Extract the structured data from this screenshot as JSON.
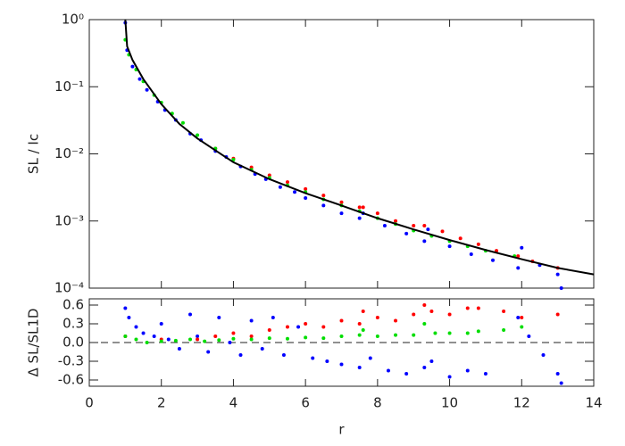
{
  "chart_data": [
    {
      "type": "scatter",
      "ylabel": "SL / Ic",
      "log_y": true,
      "xlim": [
        0,
        14
      ],
      "xticks": [
        0,
        2,
        4,
        6,
        8,
        10,
        12,
        14
      ],
      "ylim": [
        0.0001,
        1
      ],
      "yticks": [
        {
          "value": 1,
          "label": "10⁰"
        },
        {
          "value": 0.1,
          "label": "10⁻¹"
        },
        {
          "value": 0.01,
          "label": "10⁻²"
        },
        {
          "value": 0.001,
          "label": "10⁻³"
        },
        {
          "value": 0.0001,
          "label": "10⁻⁴"
        }
      ],
      "series": [
        {
          "type": "scatter",
          "color": "#0000ff",
          "x": [
            1.0,
            1.05,
            1.2,
            1.4,
            1.6,
            1.9,
            2.1,
            2.4,
            2.8,
            3.1,
            3.5,
            3.8,
            4.2,
            4.6,
            4.9,
            5.3,
            5.7,
            6.0,
            6.5,
            7.0,
            7.5,
            7.6,
            8.2,
            8.8,
            9.3,
            9.4,
            10.0,
            10.6,
            11.2,
            11.9,
            12.0,
            12.5,
            13.0,
            13.1
          ],
          "values": [
            0.9,
            0.35,
            0.2,
            0.13,
            0.09,
            0.06,
            0.045,
            0.032,
            0.02,
            0.016,
            0.011,
            0.009,
            0.0065,
            0.005,
            0.0042,
            0.0032,
            0.0027,
            0.0022,
            0.0017,
            0.0013,
            0.0011,
            0.0013,
            0.00085,
            0.00065,
            0.0005,
            0.00075,
            0.00042,
            0.00032,
            0.00026,
            0.0002,
            0.0004,
            0.00022,
            0.00016,
            0.0001
          ]
        },
        {
          "type": "scatter",
          "color": "#ff0000",
          "x": [
            3.5,
            4.0,
            4.5,
            5.0,
            5.5,
            6.0,
            6.5,
            7.0,
            7.5,
            7.6,
            8.0,
            8.5,
            9.0,
            9.3,
            9.8,
            10.3,
            10.8,
            11.3,
            11.9,
            12.3,
            13.0
          ],
          "values": [
            0.012,
            0.0085,
            0.0063,
            0.0048,
            0.0038,
            0.003,
            0.0024,
            0.0019,
            0.0016,
            0.0016,
            0.0013,
            0.001,
            0.00085,
            0.00085,
            0.0007,
            0.00055,
            0.00045,
            0.00036,
            0.0003,
            0.00025,
            0.0002
          ]
        },
        {
          "type": "scatter",
          "color": "#00dd00",
          "x": [
            1.0,
            1.1,
            1.3,
            1.5,
            1.8,
            2.0,
            2.3,
            2.6,
            3.0,
            3.5,
            4.0,
            4.5,
            5.0,
            5.5,
            6.0,
            6.5,
            7.0,
            7.5,
            8.0,
            8.5,
            9.0,
            9.5,
            10.0,
            10.5,
            11.0,
            11.8
          ],
          "values": [
            0.5,
            0.3,
            0.18,
            0.12,
            0.075,
            0.058,
            0.04,
            0.029,
            0.019,
            0.012,
            0.0082,
            0.0058,
            0.0044,
            0.0034,
            0.0027,
            0.0021,
            0.0017,
            0.0014,
            0.0011,
            0.0009,
            0.00072,
            0.0006,
            0.0005,
            0.00042,
            0.00036,
            0.0003
          ]
        },
        {
          "type": "line",
          "color": "#000000",
          "x": [
            1.0,
            1.05,
            1.2,
            1.5,
            2.0,
            2.5,
            3.0,
            4.0,
            5.0,
            6.0,
            7.0,
            8.0,
            9.0,
            10.0,
            11.0,
            12.0,
            13.0,
            14.0
          ],
          "values": [
            1.0,
            0.4,
            0.25,
            0.13,
            0.055,
            0.028,
            0.017,
            0.0075,
            0.0042,
            0.0026,
            0.0017,
            0.0011,
            0.00075,
            0.00052,
            0.00037,
            0.00027,
            0.0002,
            0.00016
          ]
        }
      ]
    },
    {
      "type": "scatter",
      "ylabel": "Δ SL/SL1D",
      "xlabel": "r",
      "zero_line": true,
      "xlim": [
        0,
        14
      ],
      "xticks": [
        0,
        2,
        4,
        6,
        8,
        10,
        12,
        14
      ],
      "ylim": [
        -0.7,
        0.7
      ],
      "yticks": [
        0.6,
        0.3,
        {
          "value": 0,
          "label": "0.0"
        },
        -0.3,
        -0.6
      ],
      "series": [
        {
          "type": "scatter",
          "color": "#0000ff",
          "x": [
            1.0,
            1.1,
            1.3,
            1.5,
            1.8,
            2.0,
            2.2,
            2.5,
            2.8,
            3.0,
            3.3,
            3.6,
            3.9,
            4.2,
            4.5,
            4.8,
            5.1,
            5.4,
            5.8,
            6.2,
            6.6,
            7.0,
            7.5,
            7.8,
            8.3,
            8.8,
            9.3,
            9.5,
            10.0,
            10.5,
            11.0,
            11.9,
            12.2,
            12.6,
            13.0,
            13.1
          ],
          "values": [
            0.55,
            0.4,
            0.25,
            0.15,
            0.1,
            0.3,
            0.05,
            -0.1,
            0.45,
            0.1,
            -0.15,
            0.4,
            0.0,
            -0.2,
            0.35,
            -0.1,
            0.4,
            -0.2,
            0.25,
            -0.25,
            -0.3,
            -0.35,
            -0.4,
            -0.25,
            -0.45,
            -0.5,
            -0.4,
            -0.3,
            -0.55,
            -0.45,
            -0.5,
            0.4,
            0.1,
            -0.2,
            -0.5,
            -0.65
          ]
        },
        {
          "type": "scatter",
          "color": "#ff0000",
          "x": [
            1.0,
            2.0,
            3.0,
            3.5,
            4.0,
            4.5,
            5.0,
            5.5,
            6.0,
            6.5,
            7.0,
            7.5,
            7.6,
            8.0,
            8.5,
            9.0,
            9.3,
            9.5,
            10.0,
            10.5,
            10.8,
            11.5,
            12.0,
            13.0
          ],
          "values": [
            0.1,
            0.05,
            0.05,
            0.1,
            0.15,
            0.1,
            0.2,
            0.25,
            0.3,
            0.25,
            0.35,
            0.3,
            0.5,
            0.4,
            0.35,
            0.45,
            0.6,
            0.5,
            0.45,
            0.55,
            0.55,
            0.5,
            0.4,
            0.45
          ]
        },
        {
          "type": "scatter",
          "color": "#00dd00",
          "x": [
            1.0,
            1.3,
            1.6,
            2.0,
            2.4,
            2.8,
            3.2,
            3.6,
            4.0,
            4.5,
            5.0,
            5.5,
            6.0,
            6.5,
            7.0,
            7.5,
            7.6,
            8.0,
            8.5,
            9.0,
            9.3,
            9.6,
            10.0,
            10.5,
            10.8,
            11.5,
            12.0
          ],
          "values": [
            0.1,
            0.05,
            0.0,
            0.02,
            0.03,
            0.05,
            0.02,
            0.04,
            0.06,
            0.05,
            0.07,
            0.06,
            0.08,
            0.07,
            0.1,
            0.12,
            0.2,
            0.1,
            0.12,
            0.12,
            0.3,
            0.15,
            0.15,
            0.15,
            0.18,
            0.2,
            0.25
          ]
        }
      ]
    }
  ]
}
